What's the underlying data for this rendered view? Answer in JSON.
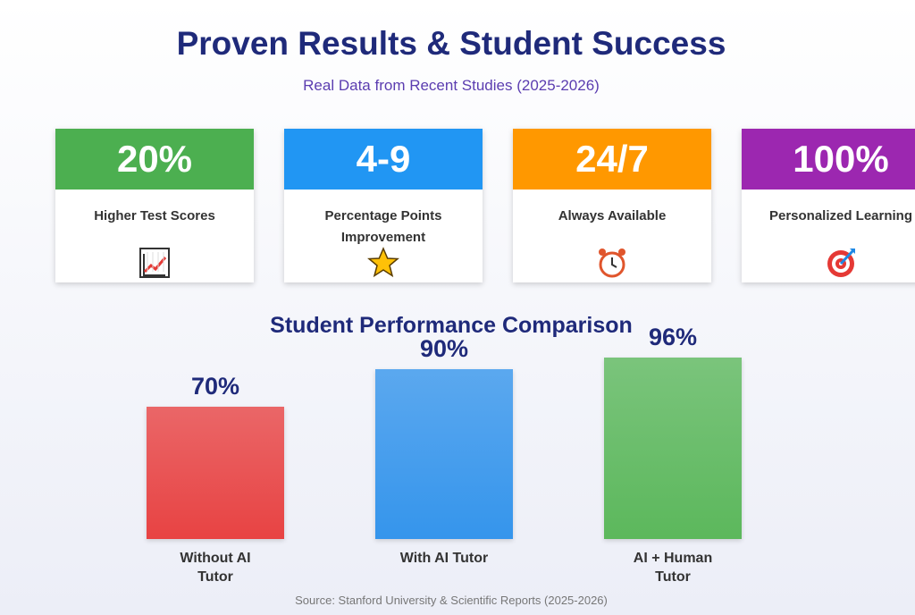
{
  "header": {
    "title": "Proven Results & Student Success",
    "subtitle": "Real Data from Recent Studies (2025-2026)"
  },
  "cards": [
    {
      "value": "20%",
      "label": "Higher Test Scores",
      "color": "#4caf50"
    },
    {
      "value": "4-9",
      "label": "Percentage Points Improvement",
      "color": "#2196f3"
    },
    {
      "value": "24/7",
      "label": "Always Available",
      "color": "#ff9800"
    },
    {
      "value": "100%",
      "label": "Personalized Learning",
      "color": "#9c27b0"
    }
  ],
  "chart_data": {
    "type": "bar",
    "title": "Student Performance Comparison",
    "categories": [
      "Without AI Tutor",
      "With AI Tutor",
      "AI + Human Tutor"
    ],
    "values": [
      70,
      90,
      96
    ],
    "value_labels": [
      "70%",
      "90%",
      "96%"
    ],
    "colors": [
      "#e84343",
      "#3595ec",
      "#5cb85c"
    ]
  },
  "footer": {
    "source": "Source: Stanford University & Scientific Reports (2025-2026)"
  }
}
